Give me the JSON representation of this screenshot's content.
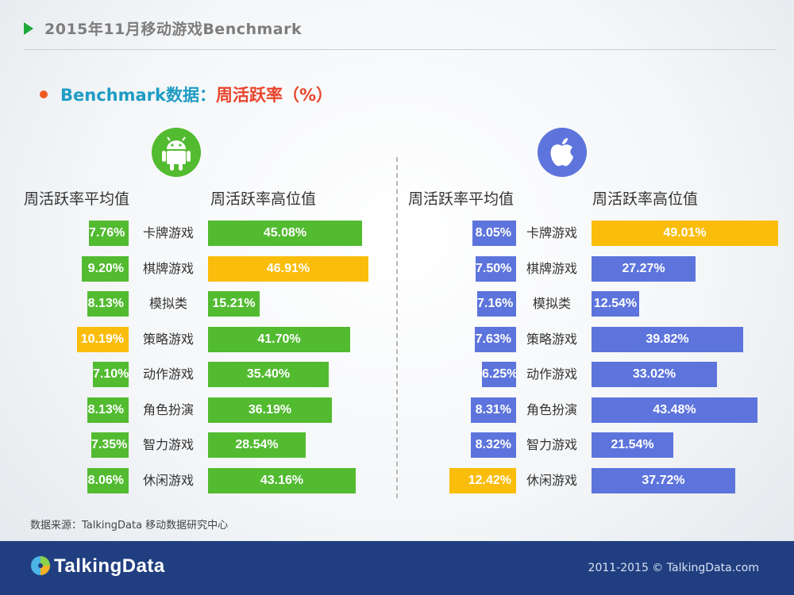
{
  "header": {
    "title": "2015年11月移动游戏Benchmark"
  },
  "subtitle": {
    "prefix": "Benchmark数据：",
    "metric": "周活跃率（%）"
  },
  "columns": {
    "avg_label": "周活跃率平均值",
    "high_label": "周活跃率高位值"
  },
  "colors": {
    "android": "#52bb30",
    "ios": "#5d74dc",
    "highlight": "#fbbd0b"
  },
  "icons": {
    "android": "android-icon",
    "ios": "apple-icon"
  },
  "chart_data": [
    {
      "type": "bar",
      "platform": "Android",
      "categories": [
        "卡牌游戏",
        "棋牌游戏",
        "模拟类",
        "策略游戏",
        "动作游戏",
        "角色扮演",
        "智力游戏",
        "休闲游戏"
      ],
      "series": [
        {
          "name": "周活跃率平均值",
          "values": [
            7.76,
            9.2,
            8.13,
            10.19,
            7.1,
            8.13,
            7.35,
            8.06
          ],
          "labels": [
            "7.76%",
            "9.20%",
            "8.13%",
            "10.19%",
            "7.10%",
            "8.13%",
            "7.35%",
            "8.06%"
          ]
        },
        {
          "name": "周活跃率高位值",
          "values": [
            45.08,
            46.91,
            15.21,
            41.7,
            35.4,
            36.19,
            28.54,
            43.16
          ],
          "labels": [
            "45.08%",
            "46.91%",
            "15.21%",
            "41.70%",
            "35.40%",
            "36.19%",
            "28.54%",
            "43.16%"
          ]
        }
      ]
    },
    {
      "type": "bar",
      "platform": "iOS",
      "categories": [
        "卡牌游戏",
        "棋牌游戏",
        "模拟类",
        "策略游戏",
        "动作游戏",
        "角色扮演",
        "智力游戏",
        "休闲游戏"
      ],
      "series": [
        {
          "name": "周活跃率平均值",
          "values": [
            8.05,
            7.5,
            7.16,
            7.63,
            6.25,
            8.31,
            8.32,
            12.42
          ],
          "labels": [
            "8.05%",
            "7.50%",
            "7.16%",
            "7.63%",
            "6.25%",
            "8.31%",
            "8.32%",
            "12.42%"
          ]
        },
        {
          "name": "周活跃率高位值",
          "values": [
            49.01,
            27.27,
            12.54,
            39.82,
            33.02,
            43.48,
            21.54,
            37.72
          ],
          "labels": [
            "49.01%",
            "27.27%",
            "12.54%",
            "39.82%",
            "33.02%",
            "43.48%",
            "21.54%",
            "37.72%"
          ]
        }
      ]
    }
  ],
  "footer": {
    "source": "数据来源：TalkingData 移动数据研究中心",
    "logo": "TalkingData",
    "copyright": "2011-2015 © TalkingData.com"
  }
}
